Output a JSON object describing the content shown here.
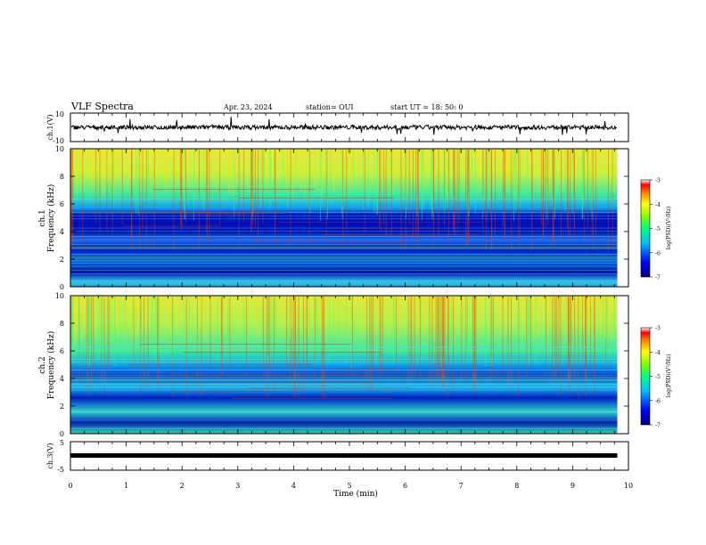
{
  "header": {
    "title": "VLF Spectra",
    "date": "Apr. 23, 2024",
    "station": "station= OUI",
    "start": "start  UT =   18: 50: 0"
  },
  "chart_data": {
    "type": "heatmap",
    "x_axis": {
      "label": "Time (min)",
      "range": [
        0,
        10
      ],
      "ticks": [
        "0",
        "1",
        "2",
        "3",
        "4",
        "5",
        "6",
        "7",
        "8",
        "9",
        "10"
      ]
    },
    "panels": [
      {
        "id": "ch1_waveform",
        "type": "line",
        "ylabel": "ch.1(V)",
        "ylim": [
          -10,
          10
        ],
        "yticks": [
          "10",
          "-10"
        ],
        "baseline": 0,
        "color": "#000000"
      },
      {
        "id": "ch1_spectrogram",
        "type": "heatmap",
        "ylabel": "ch.1 Frequency (kHz)",
        "ylim": [
          0,
          10
        ],
        "yticks": [
          "0",
          "2",
          "4",
          "6",
          "8",
          "10"
        ],
        "colorbar": {
          "label": "log(PSD)(V²/Hz)",
          "range": [
            -7,
            -3
          ],
          "ticks": [
            "-3",
            "-4",
            "-5",
            "-6",
            "-7"
          ]
        }
      },
      {
        "id": "ch2_spectrogram",
        "type": "heatmap",
        "ylabel": "ch.2 Frequency (kHz)",
        "ylim": [
          0,
          10
        ],
        "yticks": [
          "0",
          "2",
          "4",
          "6",
          "8",
          "10"
        ],
        "colorbar": {
          "label": "log(PSD)(V²/Hz)",
          "range": [
            -7,
            -3
          ],
          "ticks": [
            "-3",
            "-4",
            "-5",
            "-6",
            "-7"
          ]
        }
      },
      {
        "id": "ch3_waveform",
        "type": "line",
        "ylabel": "ch.3(V)",
        "ylim": [
          -5,
          5
        ],
        "yticks": [
          "5",
          "-5"
        ],
        "baseline": -1.5,
        "color": "#000000"
      }
    ],
    "data_end_min": 9.8,
    "colormap": [
      "#00007f",
      "#0000ff",
      "#0080ff",
      "#00ffff",
      "#80ff80",
      "#ffff00",
      "#ff8000",
      "#ff0000",
      "#ffffff"
    ]
  }
}
